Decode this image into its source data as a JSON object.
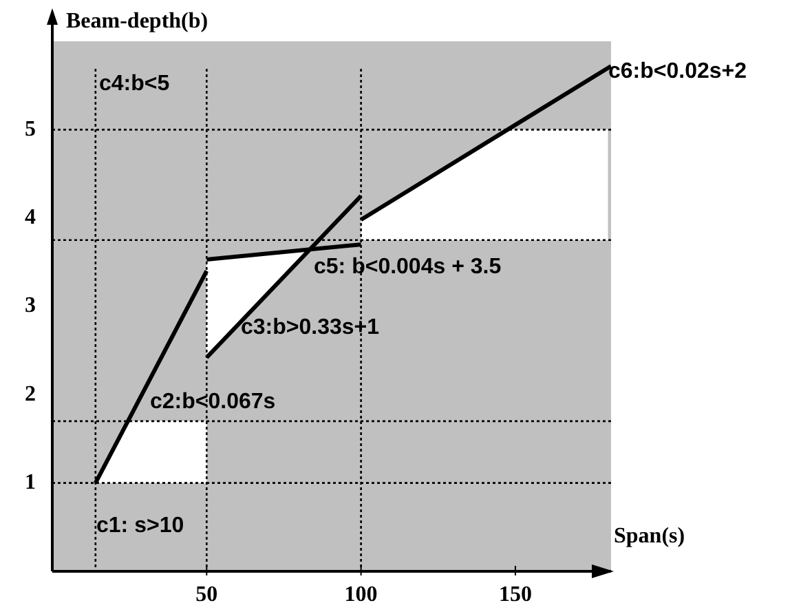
{
  "chart_data": {
    "type": "line",
    "xlabel": "Span(s)",
    "ylabel": "Beam-depth(b)",
    "xlim": [
      0,
      181
    ],
    "ylim": [
      0,
      6
    ],
    "xticks": [
      50,
      100,
      150
    ],
    "yticks": [
      1,
      2,
      3,
      4,
      5
    ],
    "grid": false,
    "legend": false,
    "marker": "none",
    "line_style": "solid",
    "series": [
      {
        "type": "area",
        "color": "#ffffff",
        "x": [
          14,
          50,
          50,
          25
        ],
        "values": [
          1,
          1,
          1.7,
          1.7
        ]
      },
      {
        "type": "area",
        "color": "#ffffff",
        "x": [
          50,
          50,
          83
        ],
        "values": [
          2.42,
          3.53,
          3.64
        ]
      },
      {
        "type": "area",
        "color": "#ffffff",
        "x": [
          100,
          100,
          147.5,
          180,
          180
        ],
        "values": [
          3.75,
          3.98,
          5,
          5,
          3.75
        ]
      },
      {
        "type": "line",
        "color": "#000000",
        "x": [
          14,
          50
        ],
        "values": [
          1,
          3.4
        ]
      },
      {
        "type": "line",
        "color": "#000000",
        "x": [
          50,
          100
        ],
        "values": [
          3.53,
          3.7
        ]
      },
      {
        "type": "line",
        "color": "#000000",
        "x": [
          50,
          100
        ],
        "values": [
          2.42,
          4.25
        ]
      },
      {
        "type": "line",
        "color": "#000000",
        "x": [
          100,
          181
        ],
        "values": [
          3.98,
          5.72
        ]
      }
    ],
    "ref_lines": [
      {
        "axis": "x",
        "value": 14,
        "line_style": "dotted",
        "color": "#000000"
      },
      {
        "axis": "x",
        "value": 50,
        "line_style": "dotted",
        "color": "#000000"
      },
      {
        "axis": "x",
        "value": 100,
        "line_style": "dotted",
        "color": "#000000"
      },
      {
        "axis": "y",
        "value": 1,
        "line_style": "dotted",
        "color": "#000000"
      },
      {
        "axis": "y",
        "value": 1.7,
        "line_style": "dotted",
        "color": "#000000"
      },
      {
        "axis": "y",
        "value": 3.75,
        "line_style": "dotted",
        "color": "#000000"
      },
      {
        "axis": "y",
        "value": 5,
        "line_style": "dotted",
        "color": "#000000"
      }
    ],
    "annotations": [
      "c1: s>10",
      "c2:b<0.067s",
      "c3:b>0.33s+1",
      "c4:b<5",
      "c5: b<0.004s + 3.5",
      "c6:b<0.02s+2"
    ]
  }
}
